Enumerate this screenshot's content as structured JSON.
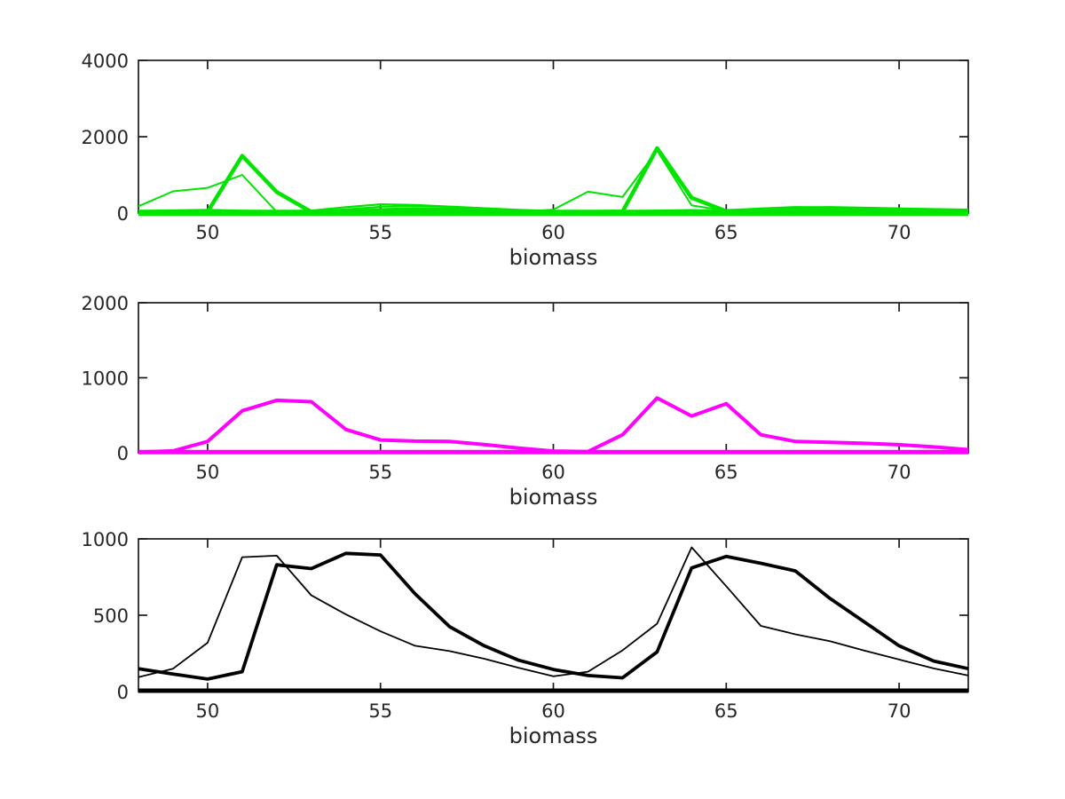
{
  "figure": {
    "background": "#ffffff",
    "axis_color": "#1a1a1a",
    "label_color": "#262626",
    "tick_font_size": 21,
    "label_font_size": 24
  },
  "chart_data": [
    {
      "type": "line",
      "title": "",
      "xlabel": "biomass",
      "ylabel": "",
      "xlim": [
        48,
        72
      ],
      "ylim": [
        0,
        4000
      ],
      "x_ticks": [
        50,
        55,
        60,
        65,
        70
      ],
      "y_ticks": [
        0,
        2000,
        4000
      ],
      "grid": false,
      "legend": null,
      "x": [
        48,
        49,
        50,
        51,
        52,
        53,
        54,
        55,
        56,
        57,
        58,
        59,
        60,
        61,
        62,
        63,
        64,
        65,
        66,
        67,
        68,
        69,
        70,
        71,
        72
      ],
      "series": [
        {
          "name": "green-bump-a",
          "color": "#00e400",
          "width": 2.2,
          "values": [
            55,
            70,
            85,
            60,
            45,
            65,
            155,
            230,
            215,
            170,
            125,
            80,
            50,
            35,
            50,
            65,
            80,
            55,
            75,
            115,
            145,
            135,
            115,
            95,
            80
          ]
        },
        {
          "name": "green-bump-b",
          "color": "#00e400",
          "width": 2,
          "values": [
            18,
            25,
            35,
            28,
            20,
            40,
            100,
            165,
            185,
            160,
            128,
            88,
            55,
            38,
            30,
            45,
            58,
            42,
            58,
            82,
            98,
            95,
            85,
            72,
            58
          ]
        },
        {
          "name": "green-thin-main",
          "color": "#00e400",
          "width": 2,
          "values": [
            180,
            570,
            660,
            1000,
            30,
            25,
            45,
            70,
            85,
            75,
            55,
            35,
            90,
            560,
            420,
            1640,
            200,
            60,
            120,
            160,
            150,
            130,
            110,
            90,
            70
          ]
        },
        {
          "name": "green-thick-main",
          "color": "#00e400",
          "width": 4.5,
          "values": [
            20,
            22,
            35,
            1500,
            550,
            30,
            50,
            80,
            100,
            90,
            70,
            45,
            30,
            25,
            40,
            1700,
            400,
            50,
            90,
            120,
            130,
            115,
            95,
            78,
            62
          ]
        },
        {
          "name": "green-baseline",
          "color": "#00e400",
          "width": 7,
          "values": [
            8,
            8,
            8,
            8,
            8,
            8,
            8,
            8,
            8,
            8,
            8,
            8,
            8,
            8,
            8,
            8,
            8,
            8,
            8,
            8,
            8,
            8,
            8,
            8,
            8
          ]
        }
      ]
    },
    {
      "type": "line",
      "title": "",
      "xlabel": "biomass",
      "ylabel": "",
      "xlim": [
        48,
        72
      ],
      "ylim": [
        0,
        2000
      ],
      "x_ticks": [
        50,
        55,
        60,
        65,
        70
      ],
      "y_ticks": [
        0,
        1000,
        2000
      ],
      "grid": false,
      "legend": null,
      "x": [
        48,
        49,
        50,
        51,
        52,
        53,
        54,
        55,
        56,
        57,
        58,
        59,
        60,
        61,
        62,
        63,
        64,
        65,
        66,
        67,
        68,
        69,
        70,
        71,
        72
      ],
      "series": [
        {
          "name": "magenta-main",
          "color": "#ff00ff",
          "width": 4,
          "values": [
            10,
            25,
            150,
            560,
            700,
            680,
            310,
            170,
            155,
            150,
            110,
            62,
            22,
            15,
            240,
            730,
            490,
            655,
            240,
            150,
            140,
            125,
            108,
            78,
            42
          ]
        },
        {
          "name": "magenta-baseline",
          "color": "#ff00ff",
          "width": 5,
          "values": [
            8,
            8,
            8,
            8,
            8,
            8,
            8,
            8,
            8,
            8,
            8,
            8,
            8,
            8,
            8,
            8,
            8,
            8,
            8,
            8,
            8,
            8,
            8,
            8,
            8
          ]
        }
      ]
    },
    {
      "type": "line",
      "title": "",
      "xlabel": "biomass",
      "ylabel": "",
      "xlim": [
        48,
        72
      ],
      "ylim": [
        0,
        1000
      ],
      "x_ticks": [
        50,
        55,
        60,
        65,
        70
      ],
      "y_ticks": [
        0,
        500,
        1000
      ],
      "grid": false,
      "legend": null,
      "x": [
        48,
        49,
        50,
        51,
        52,
        53,
        54,
        55,
        56,
        57,
        58,
        59,
        60,
        61,
        62,
        63,
        64,
        65,
        66,
        67,
        68,
        69,
        70,
        71,
        72
      ],
      "series": [
        {
          "name": "black-thin",
          "color": "#000000",
          "width": 1.8,
          "values": [
            95,
            150,
            320,
            880,
            890,
            630,
            505,
            395,
            300,
            265,
            215,
            155,
            100,
            130,
            270,
            445,
            945,
            690,
            430,
            375,
            330,
            268,
            210,
            152,
            105
          ]
        },
        {
          "name": "black-thick",
          "color": "#000000",
          "width": 3.8,
          "values": [
            150,
            115,
            82,
            130,
            830,
            805,
            905,
            895,
            640,
            425,
            300,
            205,
            145,
            105,
            90,
            260,
            810,
            885,
            840,
            790,
            610,
            455,
            300,
            200,
            150
          ]
        },
        {
          "name": "black-baseline",
          "color": "#000000",
          "width": 5,
          "values": [
            6,
            6,
            6,
            6,
            6,
            6,
            6,
            6,
            6,
            6,
            6,
            6,
            6,
            6,
            6,
            6,
            6,
            6,
            6,
            6,
            6,
            6,
            6,
            6,
            6
          ]
        }
      ]
    }
  ]
}
